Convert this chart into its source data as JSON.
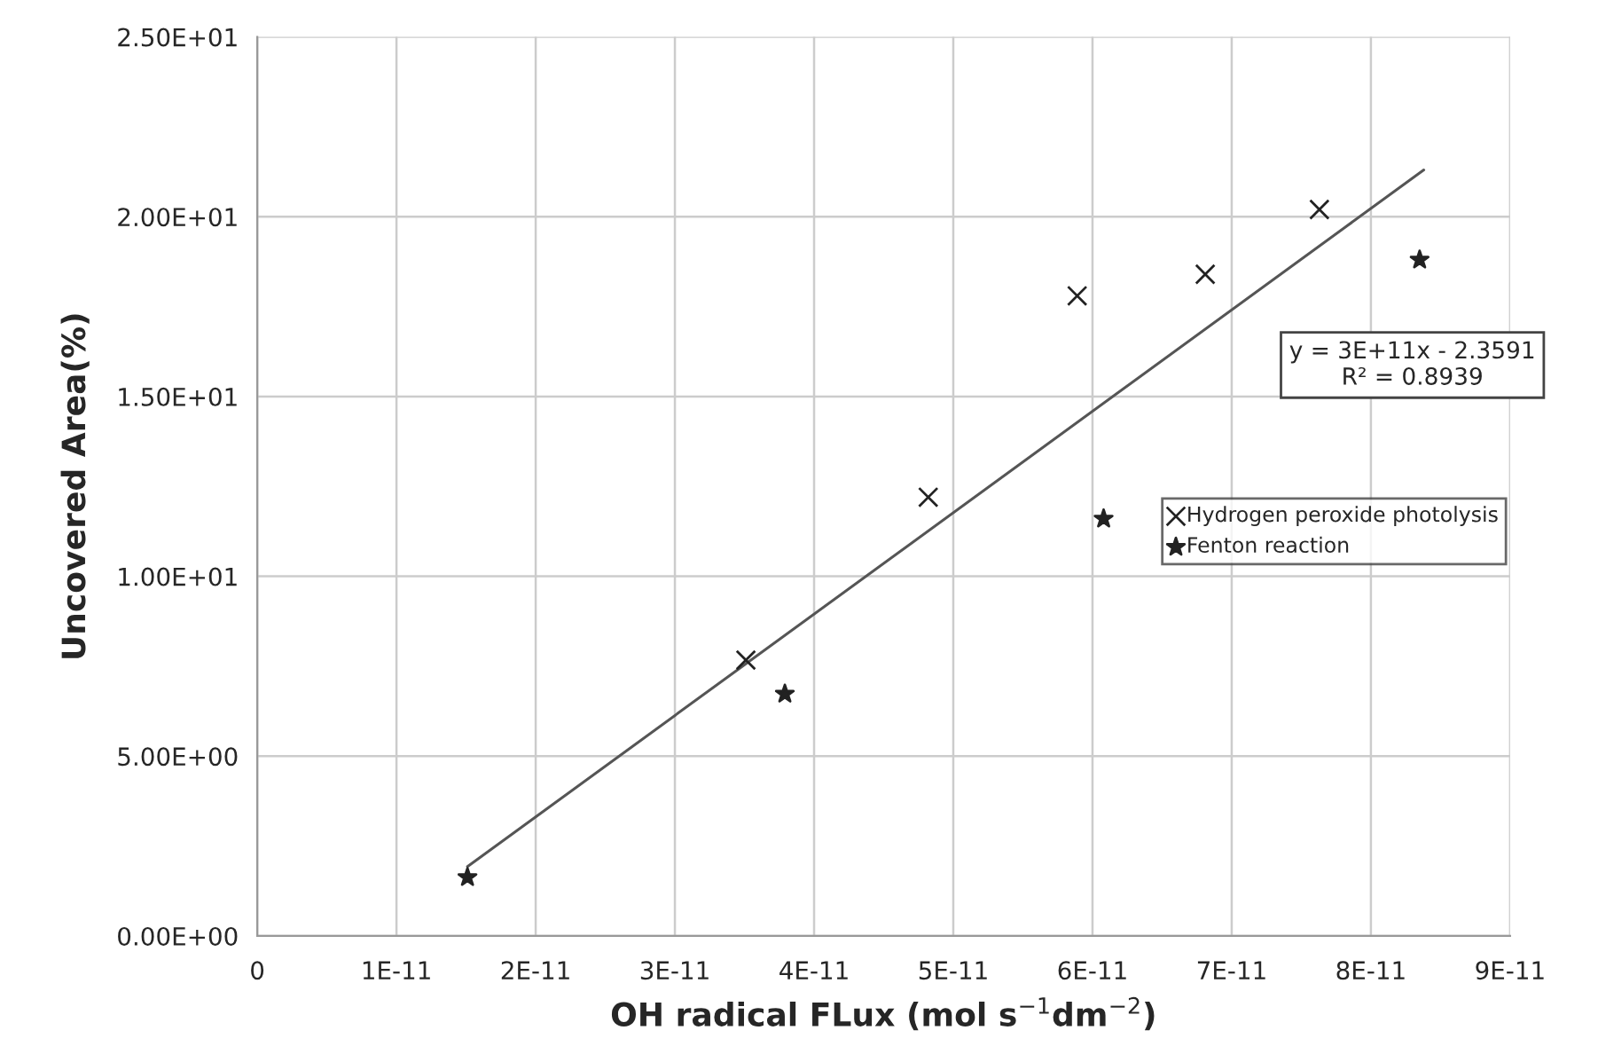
{
  "chart_data": {
    "type": "scatter",
    "xlabel": "OH radical FLux (mol s$^{−1}$dm$^{−2}$)",
    "ylabel": "Uncovered Area(%)",
    "series": [
      {
        "name": "Hydrogen peroxide photolysis",
        "color": "#222222",
        "marker": "cross",
        "x": [
          3.51e-11,
          4.82e-11,
          5.89e-11,
          6.81e-11,
          7.63e-11
        ],
        "values": [
          7.67,
          12.2,
          17.8,
          18.4,
          20.2
        ]
      },
      {
        "name": "Fenton reaction",
        "color": "#222222",
        "marker": "star",
        "x": [
          1.51e-11,
          3.79e-11,
          6.08e-11,
          8.35e-11
        ],
        "values": [
          1.63,
          6.73,
          11.6,
          18.8
        ]
      },
      {
        "type": "line",
        "color": "#555555",
        "x": [
          1.51e-11,
          8.38e-11
        ],
        "values": [
          1.93,
          21.3
        ]
      }
    ],
    "annotations": [
      "y = 3E+11x - 2.3591\nR² = 0.8939"
    ],
    "xlim": [
      0,
      9e-11
    ],
    "xticks": [
      {
        "value": 0,
        "label": "0"
      },
      {
        "value": 1e-11,
        "label": "1E-11"
      },
      {
        "value": 2e-11,
        "label": "2E-11"
      },
      {
        "value": 3e-11,
        "label": "3E-11"
      },
      {
        "value": 4e-11,
        "label": "4E-11"
      },
      {
        "value": 5e-11,
        "label": "5E-11"
      },
      {
        "value": 6e-11,
        "label": "6E-11"
      },
      {
        "value": 7e-11,
        "label": "7E-11"
      },
      {
        "value": 8e-11,
        "label": "8E-11"
      },
      {
        "value": 9e-11,
        "label": "9E-11"
      }
    ],
    "ylim": [
      0,
      25
    ],
    "yticks": [
      {
        "value": 0,
        "label": "0.00E+00"
      },
      {
        "value": 5,
        "label": "5.00E+00"
      },
      {
        "value": 10,
        "label": "1.00E+01"
      },
      {
        "value": 15,
        "label": "1.50E+01"
      },
      {
        "value": 20,
        "label": "2.00E+01"
      },
      {
        "value": 25,
        "label": "2.50E+01"
      }
    ],
    "grid": true,
    "legend": "right"
  }
}
